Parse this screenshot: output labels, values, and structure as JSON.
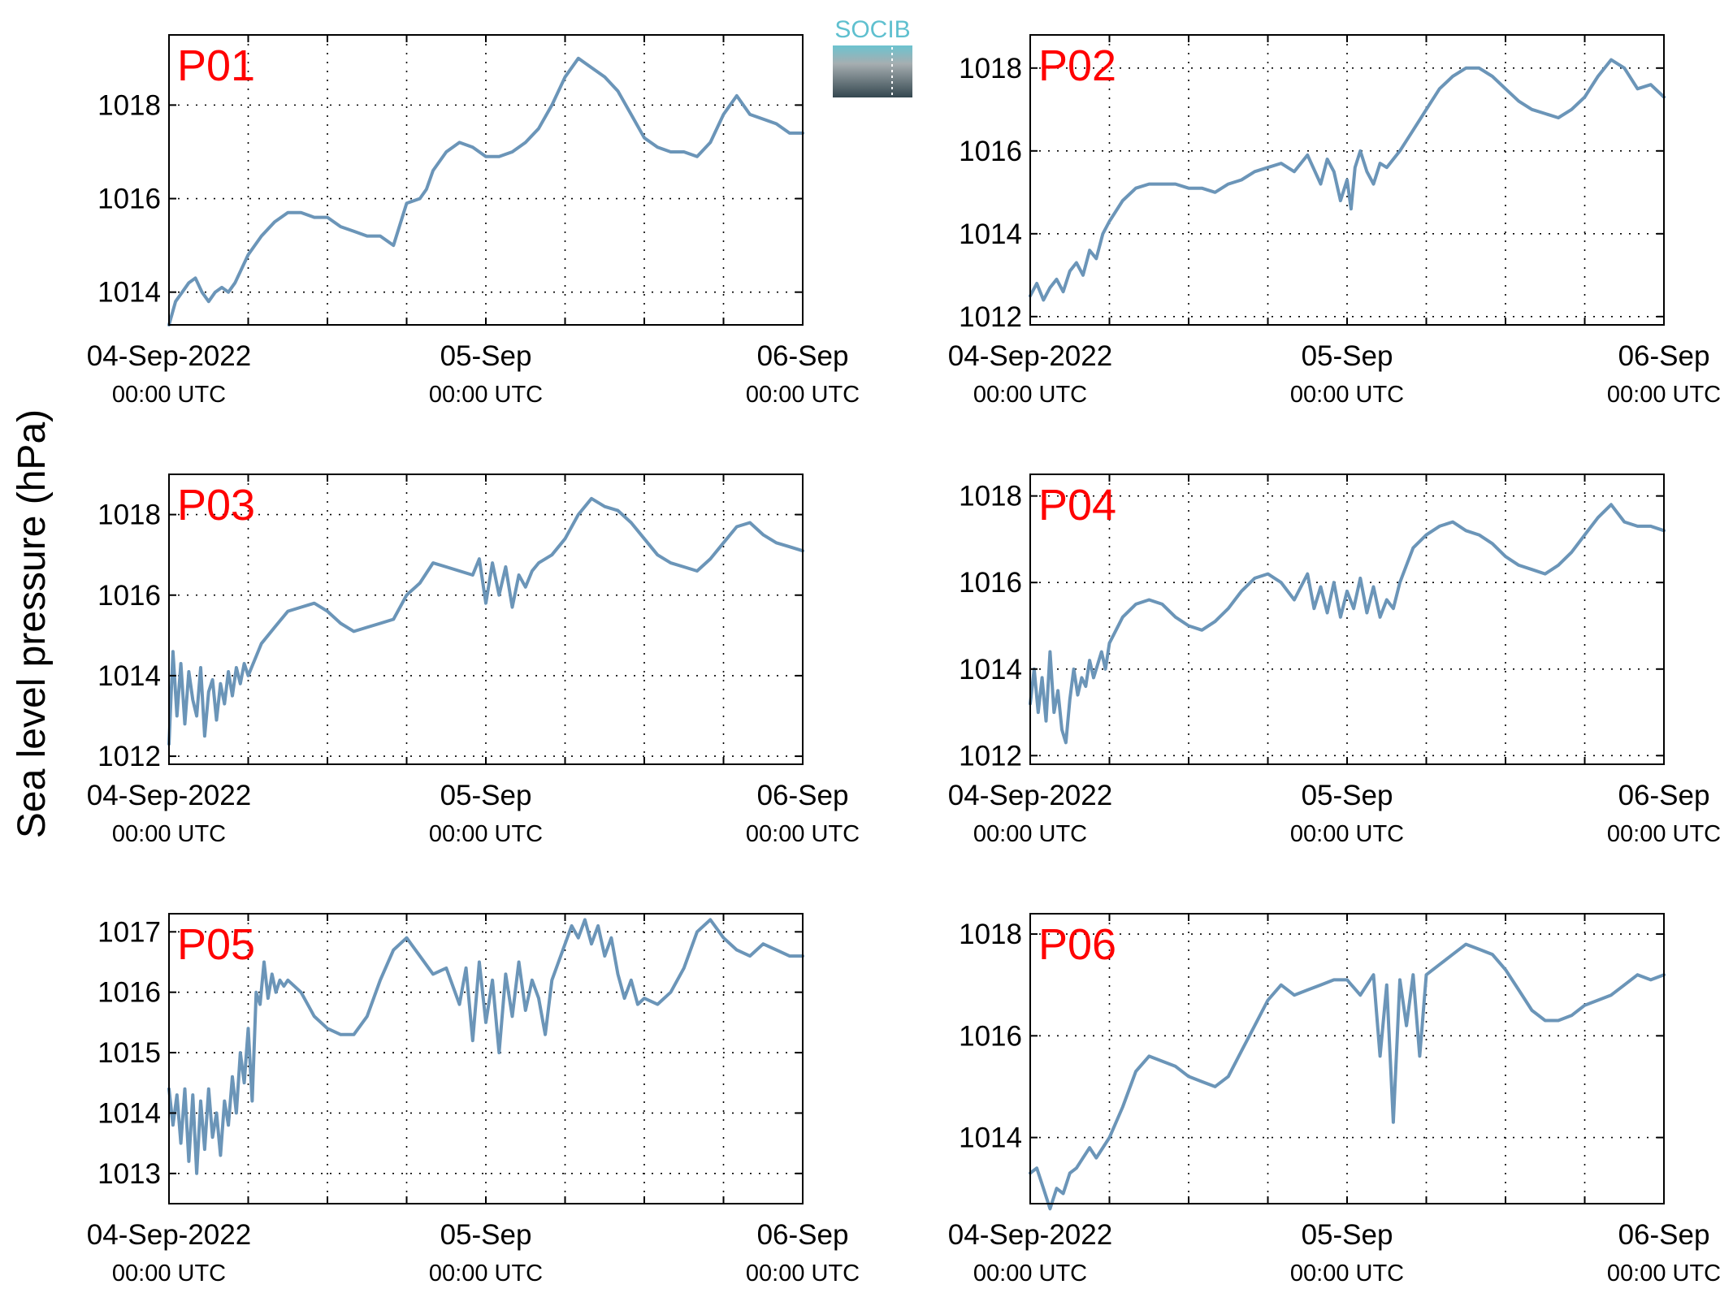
{
  "figure": {
    "ylabel": "Sea level pressure (hPa)",
    "logo_text": "SOCIB"
  },
  "colors": {
    "line": "#6b95b8",
    "panel_label": "#ff0000",
    "axis": "#000000",
    "grid": "#000000"
  },
  "x_axis": {
    "ticks": [
      {
        "hour": 0,
        "main": "04-Sep-2022",
        "sub": "00:00 UTC"
      },
      {
        "hour": 24,
        "main": "05-Sep",
        "sub": "00:00 UTC"
      },
      {
        "hour": 48,
        "main": "06-Sep",
        "sub": "00:00 UTC"
      }
    ],
    "grid_hours": [
      6,
      12,
      18,
      24,
      30,
      36,
      42
    ],
    "range_hours": [
      0,
      48
    ]
  },
  "chart_data": [
    {
      "type": "line",
      "label": "P01",
      "ylim": [
        1013.3,
        1019.5
      ],
      "yticks": [
        1014,
        1016,
        1018
      ],
      "x": [
        0,
        0.5,
        1,
        1.5,
        2,
        2.5,
        3,
        3.5,
        4,
        4.5,
        5,
        6,
        7,
        8,
        9,
        10,
        11,
        12,
        13,
        14,
        15,
        16,
        17,
        18,
        19,
        19.5,
        20,
        21,
        22,
        23,
        24,
        25,
        26,
        27,
        28,
        29,
        30,
        31,
        32,
        33,
        34,
        35,
        36,
        37,
        38,
        39,
        40,
        41,
        42,
        43,
        44,
        45,
        46,
        47,
        48
      ],
      "y": [
        1013.3,
        1013.8,
        1014.0,
        1014.2,
        1014.3,
        1014.0,
        1013.8,
        1014.0,
        1014.1,
        1014.0,
        1014.2,
        1014.8,
        1015.2,
        1015.5,
        1015.7,
        1015.7,
        1015.6,
        1015.6,
        1015.4,
        1015.3,
        1015.2,
        1015.2,
        1015.0,
        1015.9,
        1016.0,
        1016.2,
        1016.6,
        1017.0,
        1017.2,
        1017.1,
        1016.9,
        1016.9,
        1017.0,
        1017.2,
        1017.5,
        1018.0,
        1018.6,
        1019.0,
        1018.8,
        1018.6,
        1018.3,
        1017.8,
        1017.3,
        1017.1,
        1017.0,
        1017.0,
        1016.9,
        1017.2,
        1017.8,
        1018.2,
        1017.8,
        1017.7,
        1017.6,
        1017.4,
        1017.4
      ]
    },
    {
      "type": "line",
      "label": "P02",
      "ylim": [
        1011.8,
        1018.8
      ],
      "yticks": [
        1012,
        1014,
        1016,
        1018
      ],
      "x": [
        0,
        0.5,
        1,
        1.5,
        2,
        2.5,
        3,
        3.5,
        4,
        4.5,
        5,
        5.5,
        6,
        7,
        8,
        9,
        10,
        11,
        12,
        13,
        14,
        15,
        16,
        17,
        18,
        19,
        20,
        21,
        22,
        22.5,
        23,
        23.5,
        24,
        24.3,
        24.6,
        25,
        25.5,
        26,
        26.5,
        27,
        28,
        29,
        30,
        31,
        32,
        33,
        34,
        35,
        36,
        37,
        38,
        39,
        40,
        41,
        42,
        43,
        44,
        45,
        46,
        47,
        48
      ],
      "y": [
        1012.5,
        1012.8,
        1012.4,
        1012.7,
        1012.9,
        1012.6,
        1013.1,
        1013.3,
        1013.0,
        1013.6,
        1013.4,
        1014.0,
        1014.3,
        1014.8,
        1015.1,
        1015.2,
        1015.2,
        1015.2,
        1015.1,
        1015.1,
        1015.0,
        1015.2,
        1015.3,
        1015.5,
        1015.6,
        1015.7,
        1015.5,
        1015.9,
        1015.2,
        1015.8,
        1015.5,
        1014.8,
        1015.3,
        1014.6,
        1015.6,
        1016.0,
        1015.5,
        1015.2,
        1015.7,
        1015.6,
        1016.0,
        1016.5,
        1017.0,
        1017.5,
        1017.8,
        1018.0,
        1018.0,
        1017.8,
        1017.5,
        1017.2,
        1017.0,
        1016.9,
        1016.8,
        1017.0,
        1017.3,
        1017.8,
        1018.2,
        1018.0,
        1017.5,
        1017.6,
        1017.3
      ]
    },
    {
      "type": "line",
      "label": "P03",
      "ylim": [
        1011.8,
        1019.0
      ],
      "yticks": [
        1012,
        1014,
        1016,
        1018
      ],
      "x": [
        0,
        0.3,
        0.6,
        0.9,
        1.2,
        1.5,
        1.8,
        2.1,
        2.4,
        2.7,
        3,
        3.3,
        3.6,
        3.9,
        4.2,
        4.5,
        4.8,
        5.1,
        5.4,
        5.7,
        6,
        7,
        8,
        9,
        10,
        11,
        12,
        13,
        14,
        15,
        16,
        17,
        18,
        19,
        20,
        21,
        22,
        23,
        23.5,
        24,
        24.5,
        25,
        25.5,
        26,
        26.5,
        27,
        27.5,
        28,
        29,
        30,
        31,
        32,
        33,
        34,
        35,
        36,
        37,
        38,
        39,
        40,
        41,
        42,
        43,
        44,
        45,
        46,
        47,
        48
      ],
      "y": [
        1012.3,
        1014.6,
        1013.0,
        1014.3,
        1012.8,
        1014.1,
        1013.4,
        1013.0,
        1014.2,
        1012.5,
        1013.6,
        1013.9,
        1012.9,
        1013.8,
        1013.3,
        1014.1,
        1013.5,
        1014.2,
        1013.8,
        1014.3,
        1014.0,
        1014.8,
        1015.2,
        1015.6,
        1015.7,
        1015.8,
        1015.6,
        1015.3,
        1015.1,
        1015.2,
        1015.3,
        1015.4,
        1016.0,
        1016.3,
        1016.8,
        1016.7,
        1016.6,
        1016.5,
        1016.9,
        1015.8,
        1016.8,
        1016.0,
        1016.7,
        1015.7,
        1016.5,
        1016.2,
        1016.6,
        1016.8,
        1017.0,
        1017.4,
        1018.0,
        1018.4,
        1018.2,
        1018.1,
        1017.8,
        1017.4,
        1017.0,
        1016.8,
        1016.7,
        1016.6,
        1016.9,
        1017.3,
        1017.7,
        1017.8,
        1017.5,
        1017.3,
        1017.2,
        1017.1
      ]
    },
    {
      "type": "line",
      "label": "P04",
      "ylim": [
        1011.8,
        1018.5
      ],
      "yticks": [
        1012,
        1014,
        1016,
        1018
      ],
      "x": [
        0,
        0.3,
        0.6,
        0.9,
        1.2,
        1.5,
        1.8,
        2.1,
        2.4,
        2.7,
        3,
        3.3,
        3.6,
        3.9,
        4.2,
        4.5,
        4.8,
        5.1,
        5.4,
        5.7,
        6,
        7,
        8,
        9,
        10,
        11,
        12,
        13,
        14,
        15,
        16,
        17,
        18,
        19,
        20,
        21,
        21.5,
        22,
        22.5,
        23,
        23.5,
        24,
        24.5,
        25,
        25.5,
        26,
        26.5,
        27,
        27.5,
        28,
        28.5,
        29,
        30,
        31,
        32,
        33,
        34,
        35,
        36,
        37,
        38,
        39,
        40,
        41,
        42,
        43,
        44,
        45,
        46,
        47,
        48
      ],
      "y": [
        1013.2,
        1014.0,
        1013.0,
        1013.8,
        1012.8,
        1014.4,
        1013.0,
        1013.5,
        1012.6,
        1012.3,
        1013.3,
        1014.0,
        1013.4,
        1013.8,
        1013.6,
        1014.2,
        1013.8,
        1014.1,
        1014.4,
        1014.0,
        1014.6,
        1015.2,
        1015.5,
        1015.6,
        1015.5,
        1015.2,
        1015.0,
        1014.9,
        1015.1,
        1015.4,
        1015.8,
        1016.1,
        1016.2,
        1016.0,
        1015.6,
        1016.2,
        1015.4,
        1015.9,
        1015.3,
        1016.0,
        1015.2,
        1015.8,
        1015.4,
        1016.1,
        1015.3,
        1015.9,
        1015.2,
        1015.6,
        1015.4,
        1016.0,
        1016.4,
        1016.8,
        1017.1,
        1017.3,
        1017.4,
        1017.2,
        1017.1,
        1016.9,
        1016.6,
        1016.4,
        1016.3,
        1016.2,
        1016.4,
        1016.7,
        1017.1,
        1017.5,
        1017.8,
        1017.4,
        1017.3,
        1017.3,
        1017.2
      ]
    },
    {
      "type": "line",
      "label": "P05",
      "ylim": [
        1012.5,
        1017.3
      ],
      "yticks": [
        1013,
        1014,
        1015,
        1016,
        1017
      ],
      "x": [
        0,
        0.3,
        0.6,
        0.9,
        1.2,
        1.5,
        1.8,
        2.1,
        2.4,
        2.7,
        3,
        3.3,
        3.6,
        3.9,
        4.2,
        4.5,
        4.8,
        5.1,
        5.4,
        5.7,
        6,
        6.3,
        6.6,
        6.9,
        7.2,
        7.5,
        7.8,
        8.1,
        8.4,
        8.7,
        9,
        10,
        11,
        12,
        13,
        14,
        15,
        16,
        17,
        18,
        19,
        20,
        21,
        22,
        22.5,
        23,
        23.5,
        24,
        24.5,
        25,
        25.5,
        26,
        26.5,
        27,
        27.5,
        28,
        28.5,
        29,
        29.5,
        30,
        30.5,
        31,
        31.5,
        32,
        32.5,
        33,
        33.5,
        34,
        34.5,
        35,
        35.5,
        36,
        37,
        38,
        39,
        40,
        41,
        42,
        43,
        44,
        45,
        46,
        47,
        48
      ],
      "y": [
        1014.4,
        1013.8,
        1014.3,
        1013.5,
        1014.4,
        1013.2,
        1014.3,
        1013.0,
        1014.2,
        1013.4,
        1014.4,
        1013.6,
        1014.0,
        1013.3,
        1014.2,
        1013.8,
        1014.6,
        1014.0,
        1015.0,
        1014.5,
        1015.4,
        1014.2,
        1016.0,
        1015.8,
        1016.5,
        1015.9,
        1016.3,
        1016.0,
        1016.2,
        1016.1,
        1016.2,
        1016.0,
        1015.6,
        1015.4,
        1015.3,
        1015.3,
        1015.6,
        1016.2,
        1016.7,
        1016.9,
        1016.6,
        1016.3,
        1016.4,
        1015.8,
        1016.4,
        1015.2,
        1016.5,
        1015.5,
        1016.2,
        1015.0,
        1016.3,
        1015.6,
        1016.5,
        1015.7,
        1016.2,
        1015.9,
        1015.3,
        1016.2,
        1016.5,
        1016.8,
        1017.1,
        1016.9,
        1017.2,
        1016.8,
        1017.1,
        1016.6,
        1016.9,
        1016.3,
        1015.9,
        1016.2,
        1015.8,
        1015.9,
        1015.8,
        1016.0,
        1016.4,
        1017.0,
        1017.2,
        1016.9,
        1016.7,
        1016.6,
        1016.8,
        1016.7,
        1016.6,
        1016.6
      ]
    },
    {
      "type": "line",
      "label": "P06",
      "ylim": [
        1012.7,
        1018.4
      ],
      "yticks": [
        1014,
        1016,
        1018
      ],
      "x": [
        0,
        0.5,
        1,
        1.5,
        2,
        2.5,
        3,
        3.5,
        4,
        4.5,
        5,
        5.5,
        6,
        7,
        8,
        9,
        10,
        11,
        12,
        13,
        14,
        15,
        16,
        17,
        18,
        19,
        20,
        21,
        22,
        23,
        24,
        25,
        26,
        26.5,
        27,
        27.5,
        28,
        28.5,
        29,
        29.5,
        30,
        31,
        32,
        33,
        34,
        35,
        36,
        37,
        38,
        39,
        40,
        41,
        42,
        43,
        44,
        45,
        46,
        47,
        48
      ],
      "y": [
        1013.3,
        1013.4,
        1013.0,
        1012.6,
        1013.0,
        1012.9,
        1013.3,
        1013.4,
        1013.6,
        1013.8,
        1013.6,
        1013.8,
        1014.0,
        1014.6,
        1015.3,
        1015.6,
        1015.5,
        1015.4,
        1015.2,
        1015.1,
        1015.0,
        1015.2,
        1015.7,
        1016.2,
        1016.7,
        1017.0,
        1016.8,
        1016.9,
        1017.0,
        1017.1,
        1017.1,
        1016.8,
        1017.2,
        1015.6,
        1017.0,
        1014.3,
        1017.1,
        1016.2,
        1017.2,
        1015.6,
        1017.2,
        1017.4,
        1017.6,
        1017.8,
        1017.7,
        1017.6,
        1017.3,
        1016.9,
        1016.5,
        1016.3,
        1016.3,
        1016.4,
        1016.6,
        1016.7,
        1016.8,
        1017.0,
        1017.2,
        1017.1,
        1017.2
      ]
    }
  ]
}
